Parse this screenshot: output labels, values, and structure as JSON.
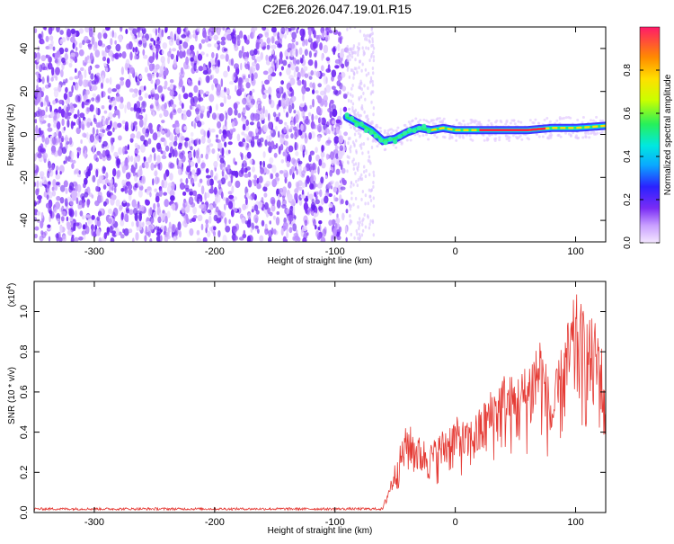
{
  "title": "C2E6.2026.047.19.01.R15",
  "chart_data": [
    {
      "type": "heatmap",
      "xlabel": "Height of straight line (km)",
      "ylabel": "Frequency (Hz)",
      "xlim": [
        -350,
        125
      ],
      "ylim": [
        -50,
        50
      ],
      "xticks": [
        -300,
        -200,
        -100,
        0,
        100
      ],
      "yticks": [
        -40,
        -20,
        0,
        20,
        40
      ],
      "grid": false,
      "noise_region_x": [
        -350,
        -90
      ],
      "signal_track": {
        "x": [
          -90,
          -80,
          -70,
          -60,
          -50,
          -40,
          -30,
          -20,
          -10,
          0,
          20,
          40,
          60,
          80,
          100,
          125
        ],
        "y": [
          8,
          5,
          2,
          -3,
          -2,
          1,
          3,
          2,
          3,
          2,
          2,
          2,
          2,
          3,
          3,
          4
        ]
      },
      "colorbar": {
        "label": "Normalized spectral amplitude",
        "range": [
          0.0,
          1.0
        ],
        "ticks": [
          0.0,
          0.2,
          0.4,
          0.6,
          0.8
        ]
      }
    },
    {
      "type": "line",
      "xlabel": "Height of straight line (km)",
      "ylabel": "SNR (10 * v/v)",
      "yscale_label": "(x10",
      "yscale_exp": "4",
      "yscale_close": ")",
      "xlim": [
        -350,
        125
      ],
      "ylim": [
        0,
        1.15
      ],
      "xticks": [
        -300,
        -200,
        -100,
        0,
        100
      ],
      "yticks": [
        0.0,
        0.2,
        0.4,
        0.6,
        0.8,
        1.0
      ],
      "grid": false,
      "color": "#e53b35",
      "envelope": {
        "x": [
          -350,
          -100,
          -60,
          -50,
          -40,
          -30,
          -20,
          -10,
          0,
          10,
          20,
          30,
          40,
          50,
          60,
          70,
          80,
          90,
          100,
          110,
          120,
          125
        ],
        "y": [
          0.02,
          0.02,
          0.03,
          0.25,
          0.45,
          0.38,
          0.35,
          0.42,
          0.48,
          0.45,
          0.52,
          0.62,
          0.7,
          0.68,
          0.75,
          0.92,
          0.6,
          0.88,
          1.1,
          0.98,
          0.95,
          0.6
        ]
      }
    }
  ],
  "colors": {
    "line": "#e53b35",
    "noise": "#7b2ff7",
    "frame": "#000000"
  }
}
